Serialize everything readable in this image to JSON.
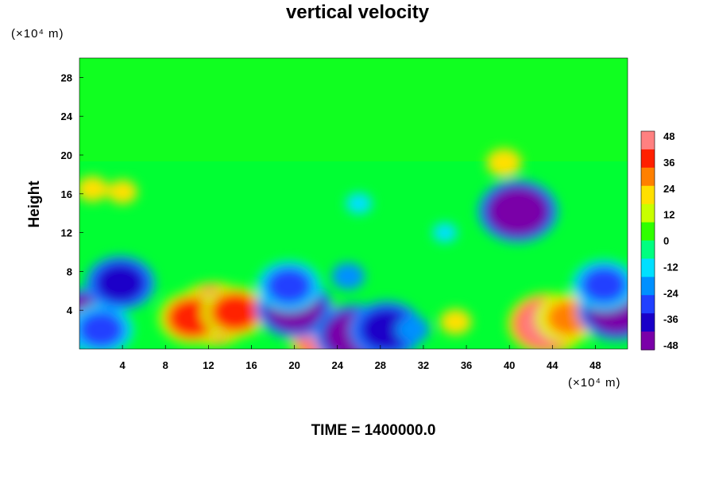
{
  "chart_data": {
    "type": "heatmap",
    "title": "vertical velocity",
    "ylabel": "Height",
    "y_unit": "(×10⁴ m)",
    "x_unit": "(×10⁴ m)",
    "xlim": [
      0,
      51
    ],
    "ylim": [
      0,
      30
    ],
    "x_ticks": [
      "4",
      "8",
      "12",
      "16",
      "20",
      "24",
      "28",
      "32",
      "36",
      "40",
      "44",
      "48"
    ],
    "y_ticks": [
      "4",
      "8",
      "12",
      "16",
      "20",
      "24",
      "28"
    ],
    "colorbar": {
      "range": [
        -48,
        48
      ],
      "labels": [
        "48",
        "36",
        "24",
        "12",
        "0",
        "-12",
        "-24",
        "-36",
        "-48"
      ],
      "colors": [
        "#7a00a8",
        "#1a00c8",
        "#2040ff",
        "#0090ff",
        "#00e0ff",
        "#00ff80",
        "#30ff00",
        "#c8ff00",
        "#ffe000",
        "#ff8000",
        "#ff2000",
        "#ff8080"
      ]
    },
    "features": [
      {
        "x": 12.5,
        "y": 3.6,
        "value": 48
      },
      {
        "x": 10.5,
        "y": 3.2,
        "value": 34
      },
      {
        "x": 14.5,
        "y": 3.8,
        "value": 32
      },
      {
        "x": 43.5,
        "y": 2.6,
        "value": 46
      },
      {
        "x": 45.5,
        "y": 3.2,
        "value": 30
      },
      {
        "x": 23.2,
        "y": 1.3,
        "value": 46
      },
      {
        "x": 0.4,
        "y": 3.0,
        "value": -48
      },
      {
        "x": 2.0,
        "y": 2.0,
        "value": -30
      },
      {
        "x": 3.8,
        "y": 6.8,
        "value": -36
      },
      {
        "x": 20.0,
        "y": 4.2,
        "value": -44
      },
      {
        "x": 19.5,
        "y": 6.5,
        "value": -30
      },
      {
        "x": 25.6,
        "y": 1.4,
        "value": -48
      },
      {
        "x": 28.6,
        "y": 2.0,
        "value": -40
      },
      {
        "x": 31.0,
        "y": 2.0,
        "value": -20
      },
      {
        "x": 40.8,
        "y": 14.2,
        "value": -48
      },
      {
        "x": 50.0,
        "y": 4.0,
        "value": -46
      },
      {
        "x": 48.8,
        "y": 6.6,
        "value": -30
      },
      {
        "x": 35.0,
        "y": 2.8,
        "value": 18
      },
      {
        "x": 39.5,
        "y": 19.2,
        "value": 22
      },
      {
        "x": 1.2,
        "y": 16.5,
        "value": 18
      },
      {
        "x": 4.0,
        "y": 16.2,
        "value": 16
      },
      {
        "x": 25.0,
        "y": 7.5,
        "value": -20
      },
      {
        "x": 26.0,
        "y": 15.0,
        "value": -12
      },
      {
        "x": 34.0,
        "y": 12.0,
        "value": -10
      }
    ]
  },
  "time_label": "TIME = 1400000.0"
}
